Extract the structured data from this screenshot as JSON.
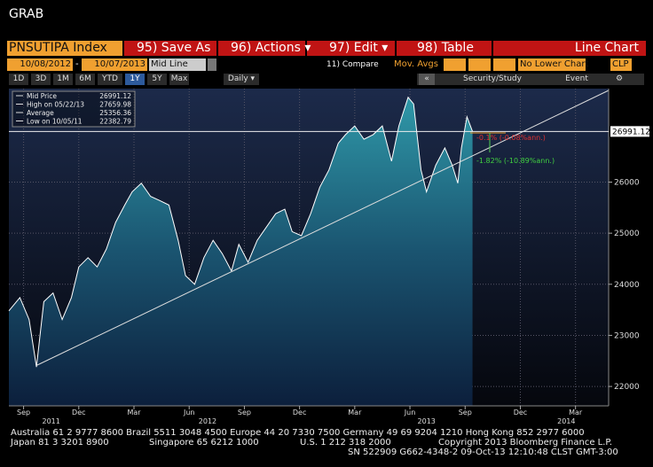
{
  "window_title": "GRAB",
  "toolbar": {
    "security": "PNSUTIPA Index",
    "buttons": [
      "95) Save As",
      "96) Actions ▾",
      "97) Edit ▾",
      "98) Table"
    ],
    "chart_type": "Line Chart"
  },
  "settings": {
    "start_date": "10/08/2012",
    "separator": "-",
    "end_date": "10/07/2013",
    "line_mode": "Mid Line",
    "compare": "11) Compare",
    "mov_avgs": "Mov. Avgs",
    "lower_chart": "No Lower Chart",
    "currency": "CLP"
  },
  "periods": [
    "1D",
    "3D",
    "1M",
    "6M",
    "YTD",
    "1Y",
    "5Y",
    "Max"
  ],
  "frequency": "Daily ▾",
  "nav": "«",
  "tools": [
    "Security/Study",
    "Event"
  ],
  "chart_data": {
    "type": "line",
    "x": [
      -0.8,
      -0.2,
      0.3,
      0.7,
      1.1,
      1.6,
      2.1,
      2.6,
      3.0,
      3.5,
      4.0,
      4.5,
      5.0,
      5.5,
      5.9,
      6.4,
      6.9,
      7.4,
      7.9,
      8.4,
      8.8,
      9.3,
      9.8,
      10.3,
      10.8,
      11.3,
      11.7,
      12.2,
      12.7,
      13.2,
      13.7,
      14.2,
      14.6,
      15.1,
      15.6,
      16.1,
      16.6,
      17.1,
      17.5,
      18.0,
      18.5,
      19.0,
      19.5,
      20.0,
      20.4,
      20.9,
      21.2,
      21.6,
      21.9,
      22.4,
      22.9,
      23.3,
      23.6,
      23.8,
      24.1,
      24.4
    ],
    "series": [
      {
        "name": "Mid Price",
        "color": "#ffffff",
        "values": [
          23480,
          23740,
          23310,
          22380,
          23660,
          23830,
          23310,
          23740,
          24340,
          24520,
          24340,
          24690,
          25210,
          25550,
          25810,
          25980,
          25720,
          25640,
          25550,
          24860,
          24170,
          24000,
          24520,
          24860,
          24600,
          24260,
          24780,
          24430,
          24860,
          25120,
          25380,
          25470,
          25030,
          24950,
          25380,
          25900,
          26240,
          26760,
          26930,
          27100,
          26840,
          26930,
          27100,
          26410,
          27100,
          27660,
          27530,
          26240,
          25810,
          26330,
          26670,
          26330,
          25980,
          26670,
          27280,
          26990
        ]
      }
    ],
    "xlim": [
      -0.8,
      31.8
    ],
    "xticks": [
      {
        "value": 0,
        "label": "Sep"
      },
      {
        "value": 3,
        "label": "Dec"
      },
      {
        "value": 6,
        "label": "Mar"
      },
      {
        "value": 9,
        "label": "Jun"
      },
      {
        "value": 12,
        "label": "Sep"
      },
      {
        "value": 15,
        "label": "Dec"
      },
      {
        "value": 18,
        "label": "Mar"
      },
      {
        "value": 21,
        "label": "Jun"
      },
      {
        "value": 24,
        "label": "Sep"
      },
      {
        "value": 27,
        "label": "Dec"
      },
      {
        "value": 30,
        "label": "Mar"
      }
    ],
    "x_year_labels": [
      {
        "value": 1.5,
        "label": "2011"
      },
      {
        "value": 10,
        "label": "2012"
      },
      {
        "value": 21.9,
        "label": "2013"
      },
      {
        "value": 29.5,
        "label": "2014"
      }
    ],
    "ylim": [
      21620,
      27830
    ],
    "yticks": [
      22000,
      23000,
      24000,
      25000,
      26000
    ],
    "grid": true,
    "legend": [
      {
        "label": "Mid Price",
        "value": 26991.12
      },
      {
        "label": "High on 05/22/13",
        "value": 27659.98
      },
      {
        "label": "Average",
        "value": 25356.36
      },
      {
        "label": "Low on 10/05/11",
        "value": 22382.79
      }
    ],
    "annotations": [
      "-0.1% (-0.08%ann.)",
      "-1.82% (-10.89%ann.)"
    ]
  },
  "footer": [
    "Australia 61 2 9777 8600 Brazil 5511 3048 4500 Europe 44 20 7330 7500 Germany 49 69 9204 1210 Hong Kong 852 2977 6000",
    "Japan 81 3 3201 8900",
    "Singapore 65 6212 1000",
    "U.S. 1 212 318 2000",
    "Copyright 2013 Bloomberg Finance L.P.",
    "SN 522909 G662-4348-2 09-Oct-13 12:10:48 CLST GMT-3:00"
  ]
}
